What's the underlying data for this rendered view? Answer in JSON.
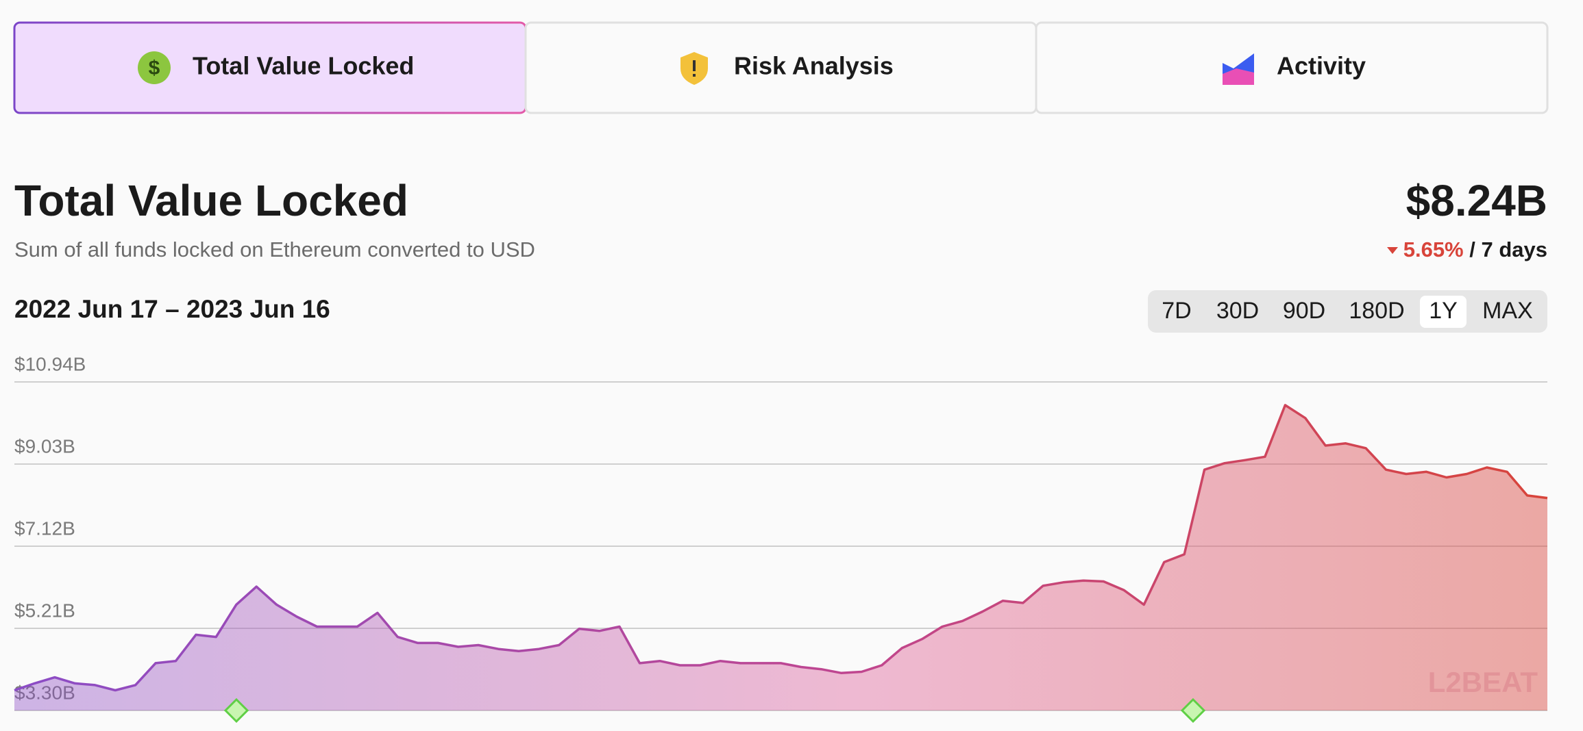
{
  "tabs": [
    {
      "label": "Total Value Locked",
      "active": true
    },
    {
      "label": "Risk Analysis",
      "active": false
    },
    {
      "label": "Activity",
      "active": false
    }
  ],
  "header": {
    "value": "$8.24B",
    "change": "5.65%",
    "change_period": "/ 7 days"
  },
  "date_range": "2022 Jun 17 – 2023 Jun 16",
  "range_buttons": [
    "7D",
    "30D",
    "90D",
    "180D",
    "1Y",
    "MAX"
  ],
  "active_range": 4,
  "watermark": "L2BEAT",
  "chart_data": {
    "type": "area",
    "title": "Total Value Locked",
    "subtitle": "Sum of all funds locked on Ethereum converted to USD",
    "values": [
      3.77,
      3.93,
      4.07,
      3.93,
      3.89,
      3.77,
      3.89,
      4.4,
      4.45,
      5.06,
      5.01,
      5.76,
      6.18,
      5.76,
      5.48,
      5.25,
      5.25,
      5.25,
      5.57,
      5.01,
      4.87,
      4.87,
      4.78,
      4.82,
      4.73,
      4.68,
      4.73,
      4.82,
      5.2,
      5.15,
      5.25,
      4.4,
      4.45,
      4.35,
      4.35,
      4.45,
      4.4,
      4.4,
      4.4,
      4.31,
      4.26,
      4.17,
      4.2,
      4.35,
      4.75,
      4.96,
      5.25,
      5.38,
      5.6,
      5.85,
      5.8,
      6.2,
      6.28,
      6.32,
      6.3,
      6.1,
      5.76,
      6.75,
      6.93,
      8.9,
      9.05,
      9.12,
      9.2,
      10.4,
      10.1,
      9.46,
      9.51,
      9.4,
      8.9,
      8.8,
      8.85,
      8.72,
      8.8,
      8.95,
      8.85,
      8.3,
      8.24
    ],
    "colors": [
      "#8b4cc6",
      "#d8443a"
    ],
    "ylim": [
      3.3,
      10.94
    ],
    "yticks": [
      {
        "value": 3.3,
        "label": "$3.30B"
      },
      {
        "value": 5.21,
        "label": "$5.21B"
      },
      {
        "value": 7.12,
        "label": "$7.12B"
      },
      {
        "value": 9.03,
        "label": "$9.03B"
      },
      {
        "value": 10.94,
        "label": "$10.94B"
      }
    ],
    "grid": true
  }
}
